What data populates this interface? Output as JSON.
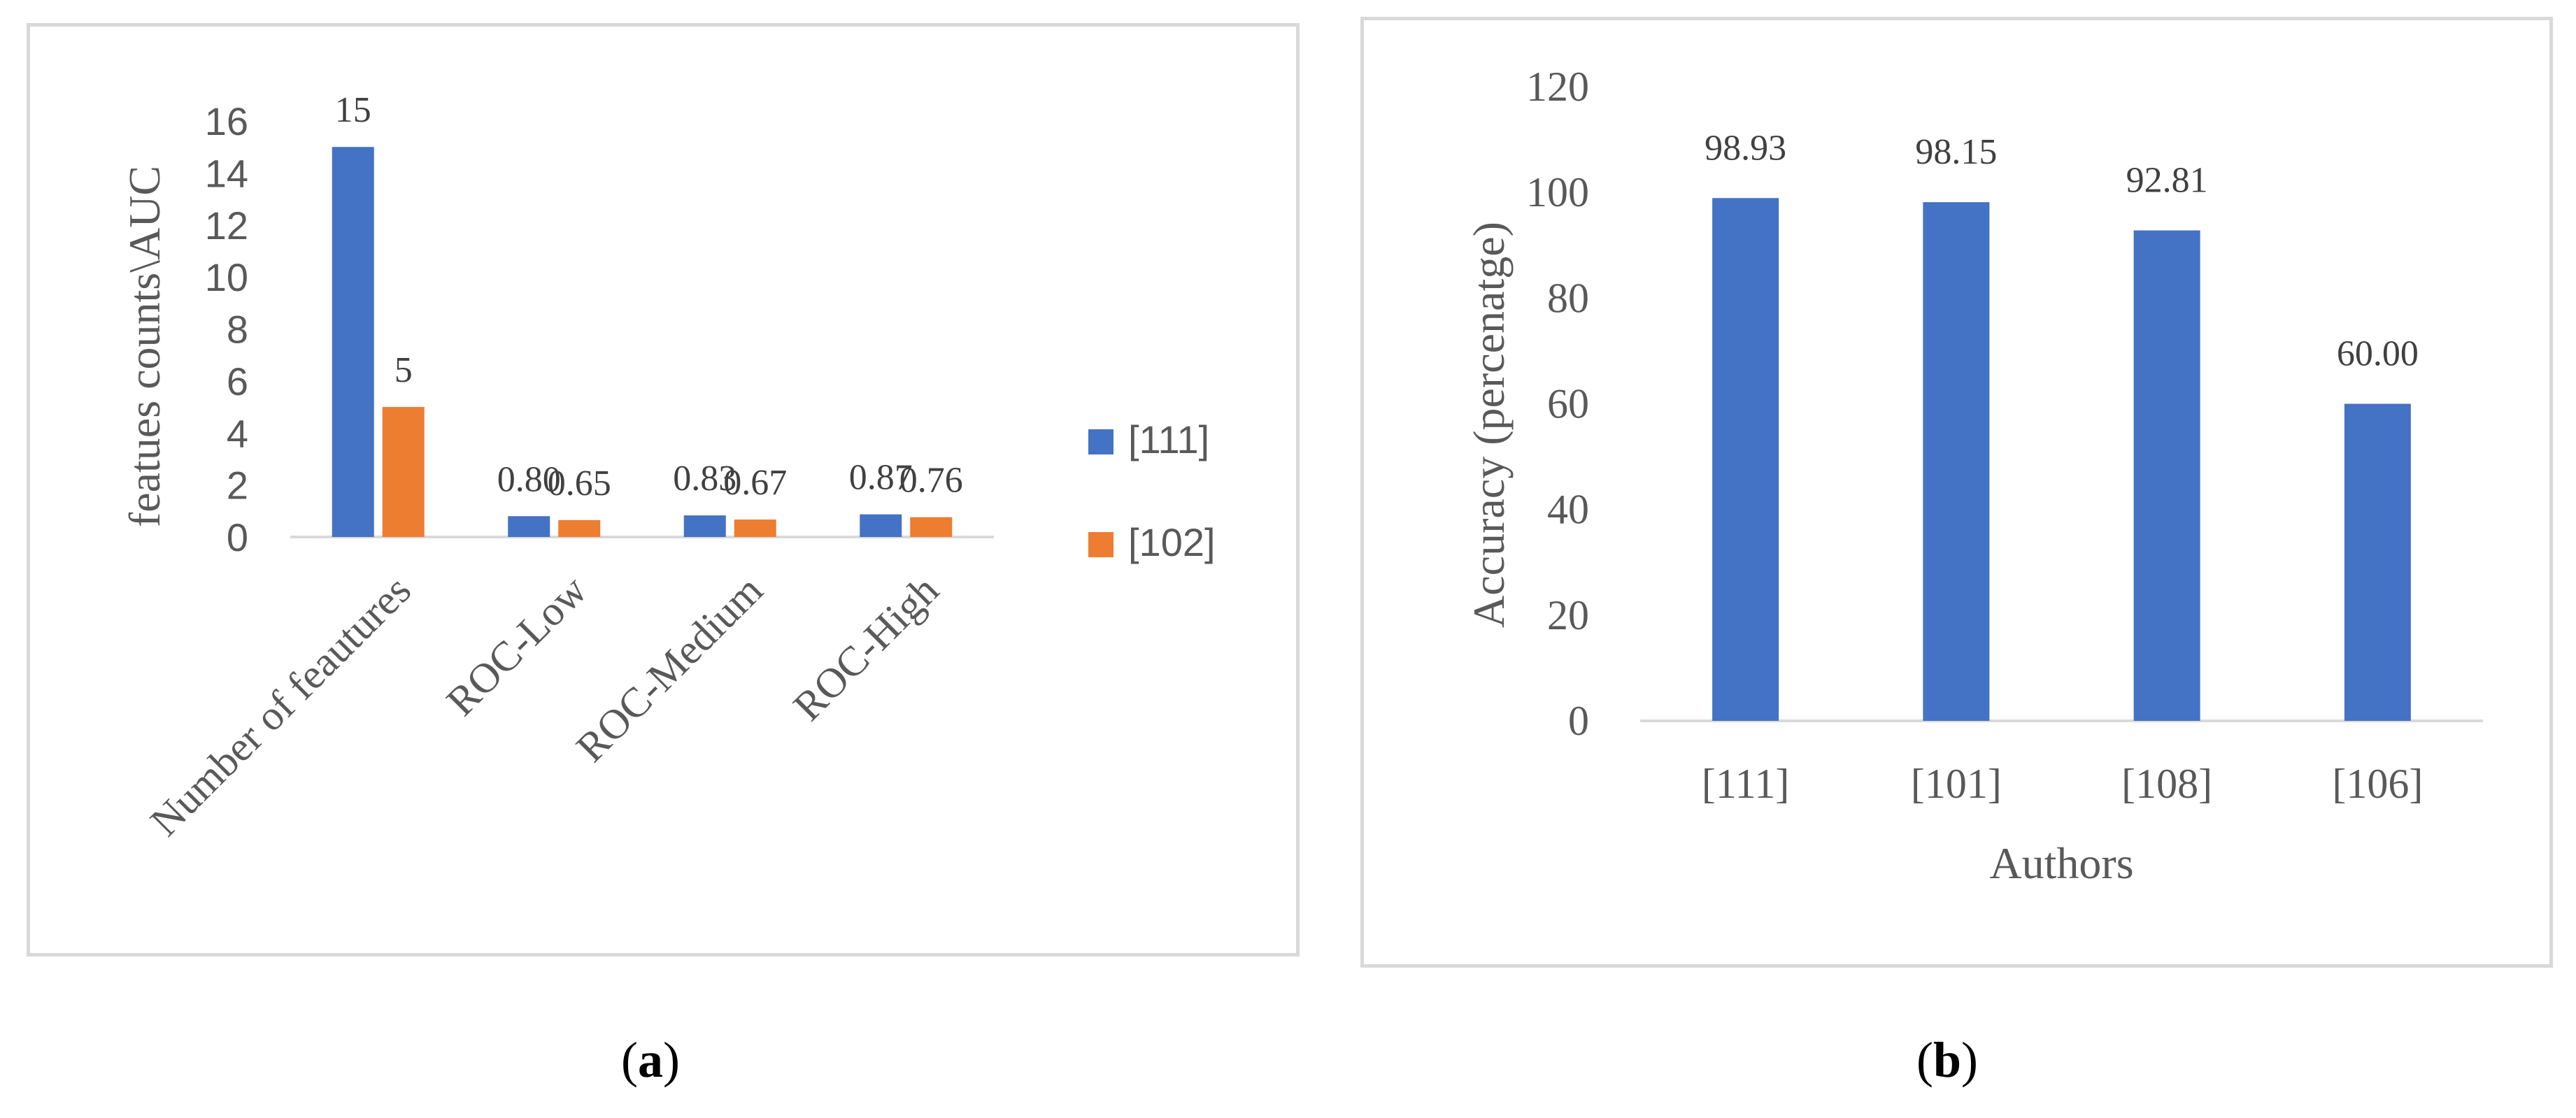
{
  "chart_data": [
    {
      "type": "bar",
      "panel_caption": "a",
      "categories": [
        "Number of feautures",
        "ROC-Low",
        "ROC-Medium",
        "ROC-High"
      ],
      "series": [
        {
          "name": "[111]",
          "color": "#4472c4",
          "values": [
            15,
            0.8,
            0.83,
            0.87
          ],
          "labels": [
            "15",
            "0.80",
            "0.83",
            "0.87"
          ]
        },
        {
          "name": "[102]",
          "color": "#ed7d31",
          "values": [
            5,
            0.65,
            0.67,
            0.76
          ],
          "labels": [
            "5",
            "0.65",
            "0.67",
            "0.76"
          ]
        }
      ],
      "ylabel": "featues counts\\AUC",
      "xlabel": "",
      "ylim": [
        0,
        16
      ],
      "yticks": [
        "0",
        "2",
        "4",
        "6",
        "8",
        "10",
        "12",
        "14",
        "16"
      ],
      "grid": false,
      "legend": "right"
    },
    {
      "type": "bar",
      "panel_caption": "b",
      "categories": [
        "[111]",
        "[101]",
        "[108]",
        "[106]"
      ],
      "series": [
        {
          "color": "#4472c4",
          "values": [
            98.93,
            98.15,
            92.81,
            60.0
          ],
          "labels": [
            "98.93",
            "98.15",
            "92.81",
            "60.00"
          ]
        }
      ],
      "ylabel": "Accuracy (percenatge)",
      "xlabel": "Authors",
      "ylim": [
        0,
        120
      ],
      "yticks": [
        "0",
        "20",
        "40",
        "60",
        "80",
        "100",
        "120"
      ],
      "grid": false,
      "legend": "none"
    }
  ],
  "captions": {
    "a_open": "(",
    "a_letter": "a",
    "a_close": ")",
    "b_open": "(",
    "b_letter": "b",
    "b_close": ")"
  }
}
